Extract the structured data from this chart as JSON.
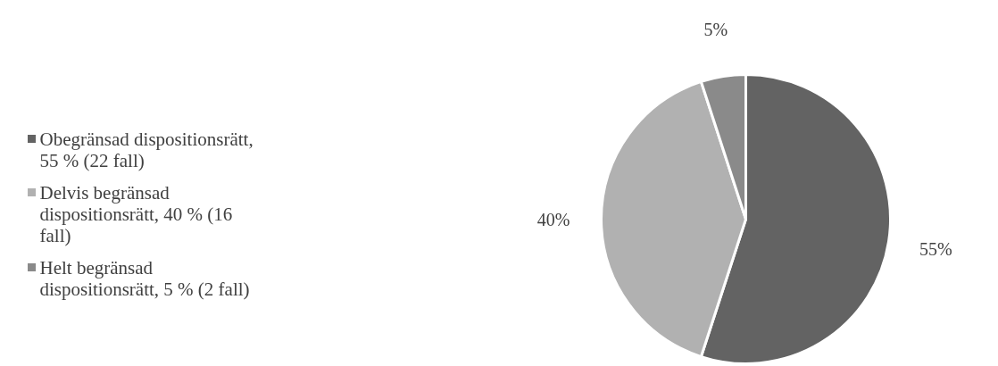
{
  "chart_data": {
    "type": "pie",
    "categories": [
      "Obegränsad dispositionsrätt, 55 % (22 fall)",
      "Delvis begränsad dispositionsrätt, 40 % (16 fall)",
      "Helt begränsad dispositionsrätt, 5 % (2 fall)"
    ],
    "values": [
      55,
      40,
      5
    ],
    "colors": [
      "#636363",
      "#b1b1b1",
      "#8a8a8a"
    ],
    "value_labels": [
      "55%",
      "40%",
      "5%"
    ],
    "legend": "left"
  }
}
